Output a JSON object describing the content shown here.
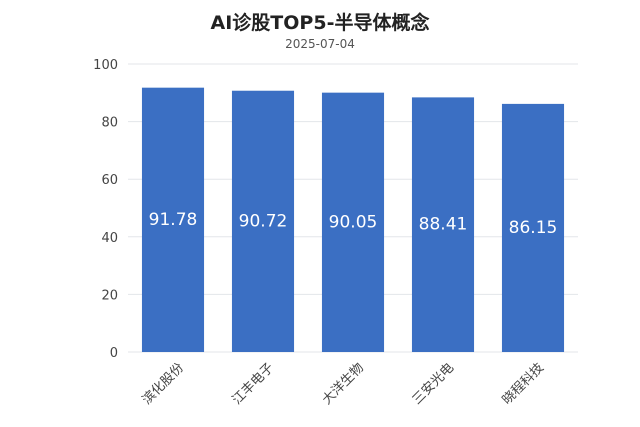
{
  "chart_data": {
    "type": "bar",
    "title": "AI诊股TOP5-半导体概念",
    "subtitle": "2025-07-04",
    "categories": [
      "滨化股份",
      "江丰电子",
      "大洋生物",
      "三安光电",
      "晓程科技"
    ],
    "values": [
      91.78,
      90.72,
      90.05,
      88.41,
      86.15
    ],
    "data_labels": [
      "91.78",
      "90.72",
      "90.05",
      "88.41",
      "86.15"
    ],
    "yticks": [
      0,
      20,
      40,
      60,
      80,
      100
    ],
    "ylim": [
      0,
      100
    ],
    "xlabel": "",
    "ylabel": "",
    "grid": true,
    "legend": "none",
    "colors": {
      "bar": "#3b6fc3",
      "label": "#ffffff",
      "grid": "#e3e6ea",
      "tick": "#444444"
    }
  }
}
